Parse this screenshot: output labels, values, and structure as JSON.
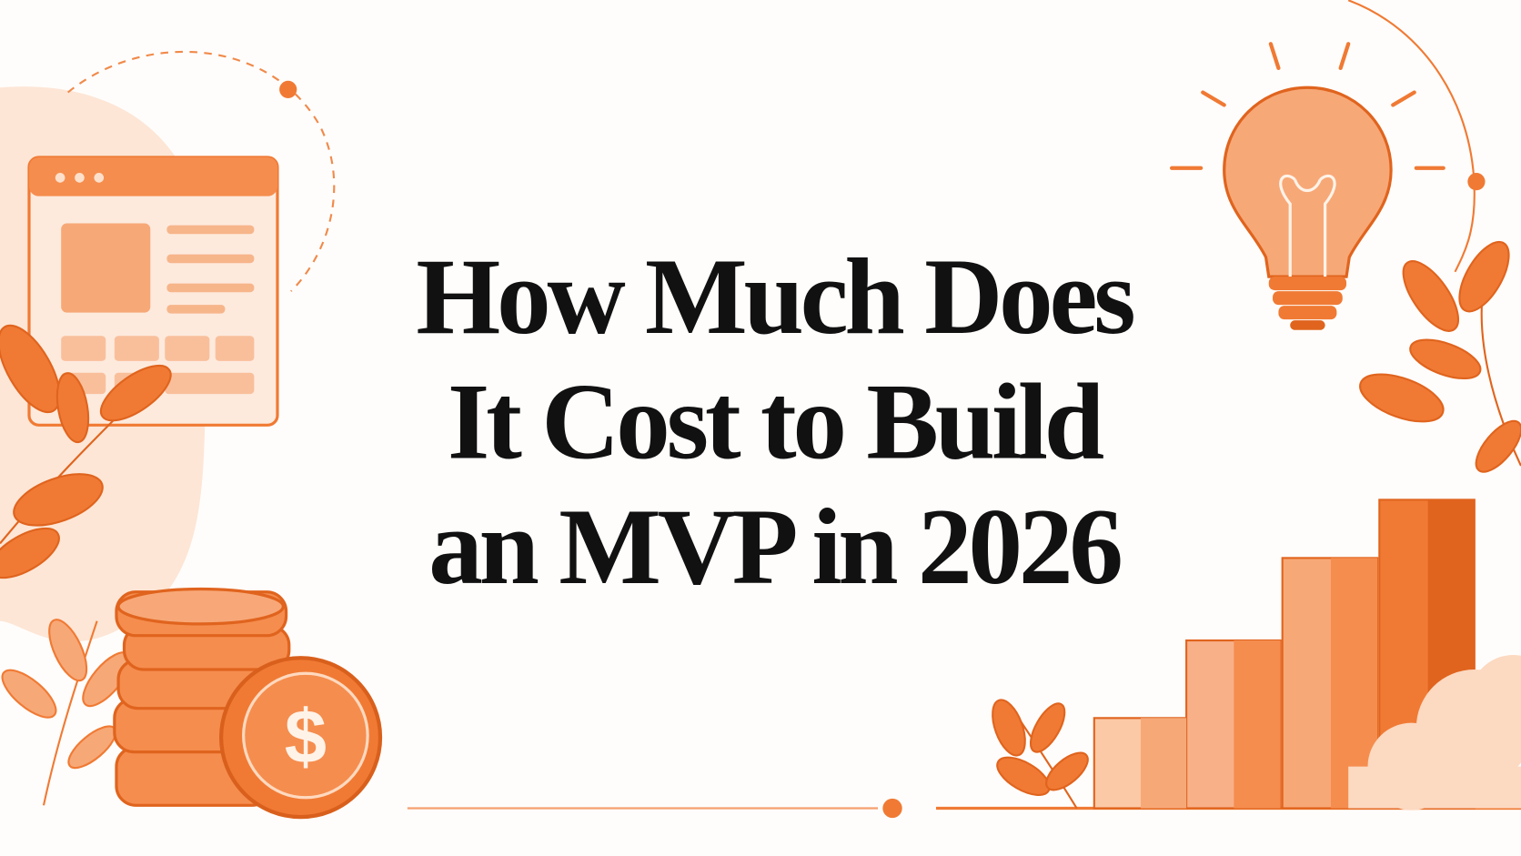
{
  "title": {
    "lines": [
      "How Much Does",
      "It Cost to Build",
      "an MVP in 2026"
    ]
  },
  "coin_symbol": "$"
}
